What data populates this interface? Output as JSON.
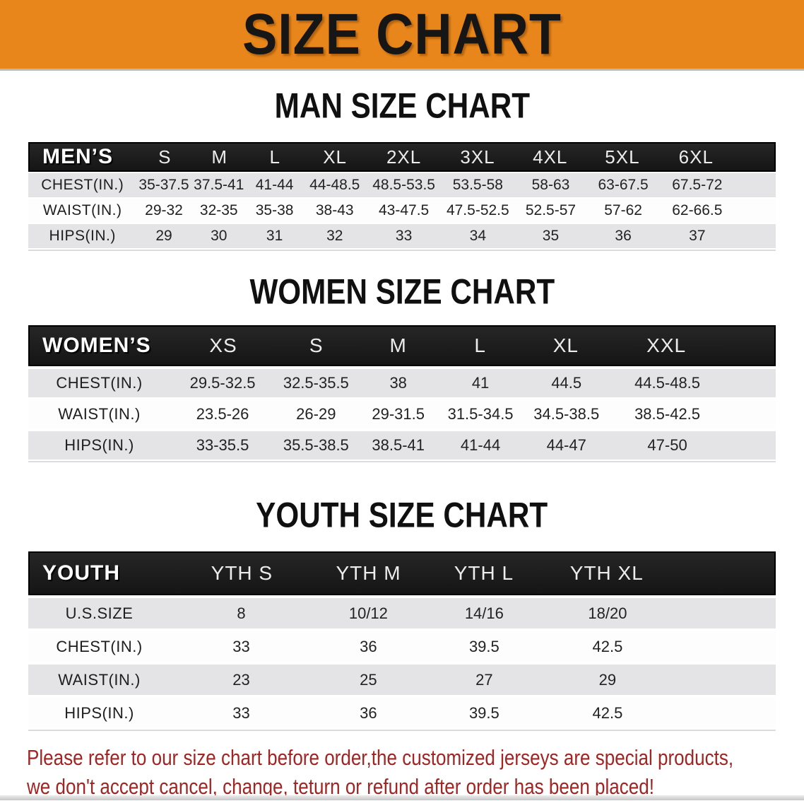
{
  "banner": {
    "title": "SIZE CHART"
  },
  "colors": {
    "banner_orange": "#E8861B",
    "header_black": "#1B1B1B",
    "row_gray": "#E4E4E7",
    "disclaimer_red": "#A02523"
  },
  "sections": [
    {
      "title": "MAN SIZE CHART",
      "table": {
        "header_label": "MEN’S",
        "columns": [
          "S",
          "M",
          "L",
          "XL",
          "2XL",
          "3XL",
          "4XL",
          "5XL",
          "6XL"
        ],
        "rows": [
          {
            "label": "CHEST(IN.)",
            "values": [
              "35-37.5",
              "37.5-41",
              "41-44",
              "44-48.5",
              "48.5-53.5",
              "53.5-58",
              "58-63",
              "63-67.5",
              "67.5-72"
            ]
          },
          {
            "label": "WAIST(IN.)",
            "values": [
              "29-32",
              "32-35",
              "35-38",
              "38-43",
              "43-47.5",
              "47.5-52.5",
              "52.5-57",
              "57-62",
              "62-66.5"
            ]
          },
          {
            "label": "HIPS(IN.)",
            "values": [
              "29",
              "30",
              "31",
              "32",
              "33",
              "34",
              "35",
              "36",
              "37"
            ]
          }
        ]
      }
    },
    {
      "title": "WOMEN SIZE CHART",
      "table": {
        "header_label": "WOMEN’S",
        "columns": [
          "XS",
          "S",
          "M",
          "L",
          "XL",
          "XXL"
        ],
        "rows": [
          {
            "label": "CHEST(IN.)",
            "values": [
              "29.5-32.5",
              "32.5-35.5",
              "38",
              "41",
              "44.5",
              "44.5-48.5"
            ]
          },
          {
            "label": "WAIST(IN.)",
            "values": [
              "23.5-26",
              "26-29",
              "29-31.5",
              "31.5-34.5",
              "34.5-38.5",
              "38.5-42.5"
            ]
          },
          {
            "label": "HIPS(IN.)",
            "values": [
              "33-35.5",
              "35.5-38.5",
              "38.5-41",
              "41-44",
              "44-47",
              "47-50"
            ]
          }
        ]
      }
    },
    {
      "title": "YOUTH SIZE CHART",
      "table": {
        "header_label": "YOUTH",
        "columns": [
          "YTH S",
          "YTH M",
          "YTH L",
          "YTH XL"
        ],
        "rows": [
          {
            "label": "U.S.SIZE",
            "values": [
              "8",
              "10/12",
              "14/16",
              "18/20"
            ]
          },
          {
            "label": "CHEST(IN.)",
            "values": [
              "33",
              "36",
              "39.5",
              "42.5"
            ]
          },
          {
            "label": "WAIST(IN.)",
            "values": [
              "23",
              "25",
              "27",
              "29"
            ]
          },
          {
            "label": "HIPS(IN.)",
            "values": [
              "33",
              "36",
              "39.5",
              "42.5"
            ]
          }
        ]
      }
    }
  ],
  "disclaimer": {
    "line1": "Please refer to our size chart before order,the customized jerseys are special products,",
    "line2": "we don't accept cancel, change, teturn or refund after order has been placed!"
  }
}
